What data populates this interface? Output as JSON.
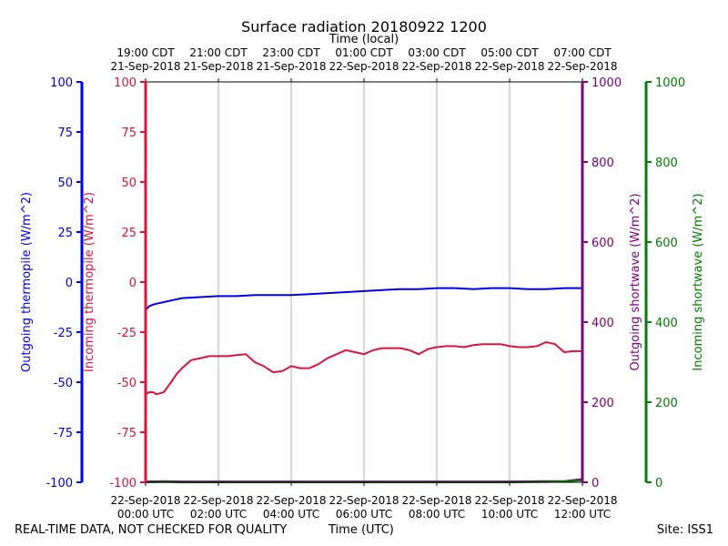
{
  "title": "Surface radiation 20180922 1200",
  "footer": {
    "disclaimer": "REAL-TIME DATA, NOT CHECKED FOR QUALITY",
    "xlabel": "Time (UTC)",
    "site": "Site: ISS1"
  },
  "colors": {
    "outgoing_thermopile": "#0000ee",
    "incoming_thermopile": "#dc143c",
    "outgoing_shortwave": "#800080",
    "incoming_shortwave": "#008000",
    "grid": "#b0b0b0"
  },
  "chart_data": {
    "type": "line",
    "title": "Surface radiation 20180922 1200",
    "grid": true,
    "x_range_hours_utc": [
      0,
      12
    ],
    "x_bottom_label": "Time (UTC)",
    "x_bottom_ticks": [
      {
        "hour": 0,
        "label1": "22-Sep-2018",
        "label2": "00:00 UTC"
      },
      {
        "hour": 2,
        "label1": "22-Sep-2018",
        "label2": "02:00 UTC"
      },
      {
        "hour": 4,
        "label1": "22-Sep-2018",
        "label2": "04:00 UTC"
      },
      {
        "hour": 6,
        "label1": "22-Sep-2018",
        "label2": "06:00 UTC"
      },
      {
        "hour": 8,
        "label1": "22-Sep-2018",
        "label2": "08:00 UTC"
      },
      {
        "hour": 10,
        "label1": "22-Sep-2018",
        "label2": "10:00 UTC"
      },
      {
        "hour": 12,
        "label1": "22-Sep-2018",
        "label2": "12:00 UTC"
      }
    ],
    "x_top_label": "Time (local)",
    "x_top_ticks": [
      {
        "hour": 0,
        "label1": "19:00 CDT",
        "label2": "21-Sep-2018"
      },
      {
        "hour": 2,
        "label1": "21:00 CDT",
        "label2": "21-Sep-2018"
      },
      {
        "hour": 4,
        "label1": "23:00 CDT",
        "label2": "21-Sep-2018"
      },
      {
        "hour": 6,
        "label1": "01:00 CDT",
        "label2": "22-Sep-2018"
      },
      {
        "hour": 8,
        "label1": "03:00 CDT",
        "label2": "22-Sep-2018"
      },
      {
        "hour": 10,
        "label1": "05:00 CDT",
        "label2": "22-Sep-2018"
      },
      {
        "hour": 12,
        "label1": "07:00 CDT",
        "label2": "22-Sep-2018"
      }
    ],
    "y_axes": [
      {
        "id": "outgoing_thermopile",
        "label": "Outgoing thermopile (W/m^2)",
        "side": "left-outer",
        "range": [
          -100,
          100
        ],
        "ticks": [
          -100,
          -75,
          -50,
          -25,
          0,
          25,
          50,
          75,
          100
        ]
      },
      {
        "id": "incoming_thermopile",
        "label": "Incoming thermopile (W/m^2)",
        "side": "left-inner",
        "range": [
          -100,
          100
        ],
        "ticks": [
          -100,
          -75,
          -50,
          -25,
          0,
          25,
          50,
          75,
          100
        ]
      },
      {
        "id": "outgoing_shortwave",
        "label": "Outgoing shortwave (W/m^2)",
        "side": "right-inner",
        "range": [
          0,
          1000
        ],
        "ticks": [
          0,
          200,
          400,
          600,
          800,
          1000
        ]
      },
      {
        "id": "incoming_shortwave",
        "label": "Incoming shortwave (W/m^2)",
        "side": "right-outer",
        "range": [
          0,
          1000
        ],
        "ticks": [
          0,
          200,
          400,
          600,
          800,
          1000
        ]
      }
    ],
    "series": [
      {
        "id": "outgoing_thermopile",
        "axis": "outgoing_thermopile",
        "x": [
          0,
          0.1,
          0.25,
          0.5,
          0.75,
          1.0,
          1.5,
          2.0,
          2.5,
          3.0,
          3.5,
          4.0,
          4.5,
          5.0,
          5.5,
          6.0,
          6.5,
          7.0,
          7.5,
          8.0,
          8.5,
          9.0,
          9.5,
          10.0,
          10.5,
          11.0,
          11.5,
          12.0
        ],
        "y": [
          -14,
          -12,
          -11,
          -10,
          -9,
          -8,
          -7.5,
          -7,
          -7,
          -6.5,
          -6.5,
          -6.5,
          -6,
          -5.5,
          -5,
          -4.5,
          -4,
          -3.5,
          -3.5,
          -3,
          -3,
          -3.5,
          -3,
          -3,
          -3.5,
          -3.5,
          -3,
          -3
        ]
      },
      {
        "id": "incoming_thermopile",
        "axis": "incoming_thermopile",
        "x": [
          0,
          0.1,
          0.2,
          0.3,
          0.5,
          0.7,
          0.85,
          1.0,
          1.25,
          1.5,
          1.75,
          2.0,
          2.25,
          2.5,
          2.75,
          3.0,
          3.25,
          3.5,
          3.75,
          4.0,
          4.25,
          4.5,
          4.75,
          5.0,
          5.25,
          5.5,
          5.75,
          6.0,
          6.25,
          6.5,
          6.75,
          7.0,
          7.25,
          7.5,
          7.75,
          8.0,
          8.25,
          8.5,
          8.75,
          9.0,
          9.25,
          9.5,
          9.75,
          10.0,
          10.25,
          10.5,
          10.75,
          11.0,
          11.25,
          11.5,
          11.75,
          12.0
        ],
        "y": [
          -56,
          -55,
          -55,
          -56,
          -55,
          -50,
          -46,
          -43,
          -39,
          -38,
          -37,
          -37,
          -37,
          -36.5,
          -36,
          -40,
          -42,
          -45,
          -44.5,
          -42,
          -43,
          -43,
          -41,
          -38,
          -36,
          -34,
          -35,
          -36,
          -34,
          -33,
          -33,
          -33,
          -34,
          -36,
          -33.5,
          -32.5,
          -32,
          -32,
          -32.5,
          -31.5,
          -31,
          -31,
          -31,
          -32,
          -32.5,
          -32.5,
          -32,
          -30,
          -31,
          -35,
          -34.5,
          -34.5
        ]
      },
      {
        "id": "outgoing_shortwave",
        "axis": "outgoing_shortwave",
        "x": [
          0,
          0.5,
          1,
          2,
          4,
          6,
          8,
          10,
          11,
          11.5,
          12
        ],
        "y": [
          2,
          3,
          2,
          2,
          2,
          2,
          2,
          2,
          3,
          3,
          8
        ]
      },
      {
        "id": "incoming_shortwave",
        "axis": "incoming_shortwave",
        "x": [
          0,
          0.5,
          1,
          2,
          4,
          6,
          8,
          10,
          11,
          11.5,
          12
        ],
        "y": [
          0,
          1,
          0,
          0,
          0,
          0,
          0,
          0,
          1,
          2,
          5
        ]
      }
    ]
  }
}
